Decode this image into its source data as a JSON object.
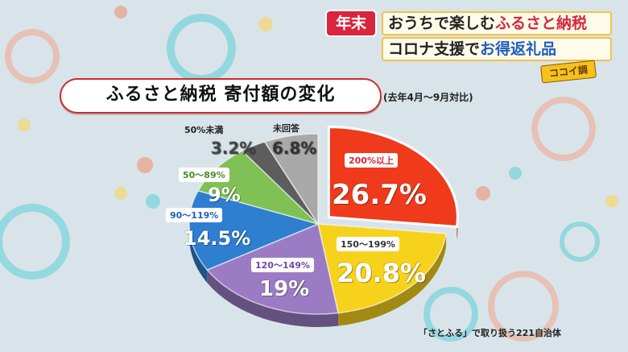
{
  "banner": {
    "tag": "年末",
    "line1_plain": "おうちで楽しむ",
    "line1_accent": "ふるさと納税",
    "line2_plain": "コロナ支援で",
    "line2_accent": "お得返礼品"
  },
  "program_logo": "ココイ調",
  "chart_data": {
    "type": "pie",
    "title": "ふるさと納税 寄付額の変化",
    "subtitle": "(去年4月～9月対比)",
    "slices": [
      {
        "label": "200%以上",
        "value": 26.7,
        "display": "26.7%",
        "color": "#f03a1c"
      },
      {
        "label": "150～199%",
        "value": 20.8,
        "display": "20.8%",
        "color": "#f7d21c"
      },
      {
        "label": "120～149%",
        "value": 19,
        "display": "19%",
        "color": "#9b7cc4"
      },
      {
        "label": "90～119%",
        "value": 14.5,
        "display": "14.5%",
        "color": "#2f7fd0"
      },
      {
        "label": "50～89%",
        "value": 9,
        "display": "9%",
        "color": "#7fc155"
      },
      {
        "label": "50%未満",
        "value": 3.2,
        "display": "3.2%",
        "color": "#5d5d5d"
      },
      {
        "label": "未回答",
        "value": 6.8,
        "display": "6.8%",
        "color": "#a9a9a9"
      }
    ],
    "source_note": "「さとふる」で取り扱う221自治体"
  }
}
